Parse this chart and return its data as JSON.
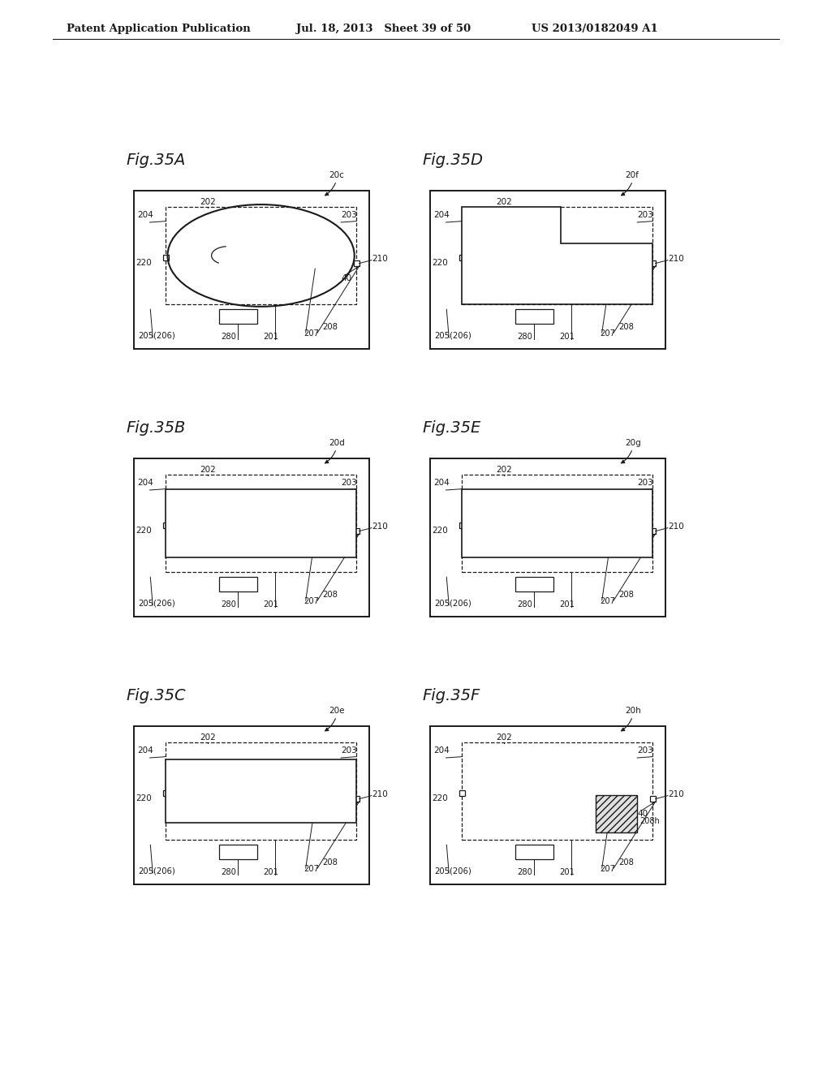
{
  "header_left": "Patent Application Publication",
  "header_mid": "Jul. 18, 2013   Sheet 39 of 50",
  "header_right": "US 2013/0182049 A1",
  "bg_color": "#ffffff",
  "line_color": "#1a1a1a",
  "figures": [
    {
      "name": "Fig.35A",
      "label": "20c",
      "col": 0,
      "row": 0,
      "type": "ellipse",
      "notes": "Full ink bag shown as full ellipse"
    },
    {
      "name": "Fig.35D",
      "label": "20f",
      "col": 1,
      "row": 0,
      "type": "rect_notch",
      "notes": "Partially filled shown as rect with notch top-right"
    },
    {
      "name": "Fig.35B",
      "label": "20d",
      "col": 0,
      "row": 1,
      "type": "rect_flat",
      "notes": "Flat rectangle bag, diagonal hatch indicator at right"
    },
    {
      "name": "Fig.35E",
      "label": "20g",
      "col": 1,
      "row": 1,
      "type": "rect_flat_diag",
      "notes": "Rectangle bag flat with diagonal indicator"
    },
    {
      "name": "Fig.35C",
      "label": "20e",
      "col": 0,
      "row": 2,
      "type": "rect_curve",
      "notes": "Rectangle bag with curve indicator"
    },
    {
      "name": "Fig.35F",
      "label": "20h",
      "col": 1,
      "row": 2,
      "type": "hatch_box",
      "notes": "Small hatched box at right side"
    }
  ]
}
